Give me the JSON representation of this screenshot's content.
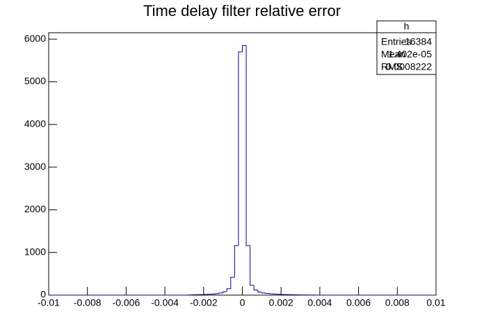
{
  "chart_data": {
    "type": "histogram",
    "title": "Time delay filter relative error",
    "bins": [
      -0.01,
      -0.0098,
      -0.0096,
      -0.0094,
      -0.0092,
      -0.009,
      -0.0088,
      -0.0086,
      -0.0084,
      -0.0082,
      -0.008,
      -0.0078,
      -0.0076,
      -0.0074,
      -0.0072,
      -0.007,
      -0.0068,
      -0.0066,
      -0.0064,
      -0.0062,
      -0.006,
      -0.0058,
      -0.0056,
      -0.0054,
      -0.0052,
      -0.005,
      -0.0048,
      -0.0046,
      -0.0044,
      -0.0042,
      -0.004,
      -0.0038,
      -0.0036,
      -0.0034,
      -0.0032,
      -0.003,
      -0.0028,
      -0.0026,
      -0.0024,
      -0.0022,
      -0.002,
      -0.0018,
      -0.0016,
      -0.0014,
      -0.0012,
      -0.001,
      -0.0008,
      -0.0006,
      -0.0004,
      -0.0002,
      0,
      0.0002,
      0.0004,
      0.0006,
      0.0008,
      0.001,
      0.0012,
      0.0014,
      0.0016,
      0.0018,
      0.002,
      0.0022,
      0.0024,
      0.0026,
      0.0028,
      0.003,
      0.0032,
      0.0034,
      0.0036,
      0.0038,
      0.004,
      0.0042,
      0.0044,
      0.0046,
      0.0048,
      0.005,
      0.0052,
      0.0054,
      0.0056,
      0.0058,
      0.006,
      0.0062,
      0.0064,
      0.0066,
      0.0068,
      0.007,
      0.0072,
      0.0074,
      0.0076,
      0.0078,
      0.008,
      0.0082,
      0.0084,
      0.0086,
      0.0088,
      0.009,
      0.0092,
      0.0094,
      0.0096,
      0.0098,
      0.01
    ],
    "values": [
      0,
      0,
      0,
      0,
      0,
      0,
      0,
      0,
      0,
      0,
      0,
      0,
      0,
      0,
      0,
      0,
      0,
      0,
      0,
      0,
      0,
      0,
      0,
      0,
      0,
      0,
      0,
      0,
      0,
      0,
      0,
      0,
      0,
      0,
      0,
      0,
      5,
      8,
      10,
      12,
      15,
      20,
      25,
      35,
      50,
      80,
      150,
      420,
      1160,
      5700,
      5850,
      1160,
      230,
      120,
      70,
      50,
      40,
      30,
      25,
      20,
      15,
      12,
      10,
      8,
      6,
      5,
      4,
      3,
      2,
      0,
      0,
      0,
      0,
      0,
      0,
      0,
      0,
      0,
      0,
      0,
      0,
      0,
      0,
      0,
      0,
      0,
      0,
      0,
      0,
      0,
      0,
      0,
      0,
      0,
      0,
      0,
      0,
      0,
      0,
      0
    ],
    "color": "#000080",
    "xlim": [
      -0.01,
      0.01
    ],
    "xticks": [
      -0.01,
      -0.008,
      -0.006,
      -0.004,
      -0.002,
      0,
      0.002,
      0.004,
      0.006,
      0.008,
      0.01
    ],
    "ylim": [
      0,
      6150
    ],
    "yticks": [
      0,
      1000,
      2000,
      3000,
      4000,
      5000,
      6000
    ],
    "stats": {
      "title": "h",
      "rows": [
        [
          "Entries",
          "16384"
        ],
        [
          "Mean",
          "1.402e-05"
        ],
        [
          "RMS",
          "0.0008222"
        ]
      ]
    }
  }
}
